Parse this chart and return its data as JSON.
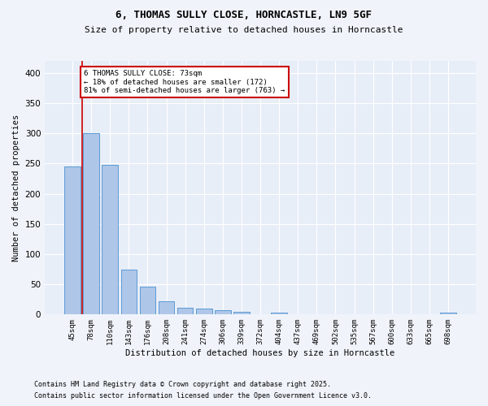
{
  "title_line1": "6, THOMAS SULLY CLOSE, HORNCASTLE, LN9 5GF",
  "title_line2": "Size of property relative to detached houses in Horncastle",
  "xlabel": "Distribution of detached houses by size in Horncastle",
  "ylabel": "Number of detached properties",
  "categories": [
    "45sqm",
    "78sqm",
    "110sqm",
    "143sqm",
    "176sqm",
    "208sqm",
    "241sqm",
    "274sqm",
    "306sqm",
    "339sqm",
    "372sqm",
    "404sqm",
    "437sqm",
    "469sqm",
    "502sqm",
    "535sqm",
    "567sqm",
    "600sqm",
    "633sqm",
    "665sqm",
    "698sqm"
  ],
  "values": [
    245,
    300,
    248,
    75,
    46,
    22,
    11,
    10,
    7,
    4,
    0,
    3,
    0,
    0,
    0,
    0,
    0,
    0,
    0,
    0,
    3
  ],
  "bar_color": "#aec6e8",
  "bar_edge_color": "#5b9bd5",
  "property_line_x": 0.5,
  "property_line_color": "#cc0000",
  "annotation_text": "6 THOMAS SULLY CLOSE: 73sqm\n← 18% of detached houses are smaller (172)\n81% of semi-detached houses are larger (763) →",
  "annotation_box_color": "#ffffff",
  "annotation_box_edge": "#cc0000",
  "footnote1": "Contains HM Land Registry data © Crown copyright and database right 2025.",
  "footnote2": "Contains public sector information licensed under the Open Government Licence v3.0.",
  "bg_color": "#f0f4fa",
  "plot_bg_color": "#e8eef8",
  "grid_color": "#ffffff",
  "ylim": [
    0,
    420
  ],
  "yticks": [
    0,
    50,
    100,
    150,
    200,
    250,
    300,
    350,
    400
  ]
}
